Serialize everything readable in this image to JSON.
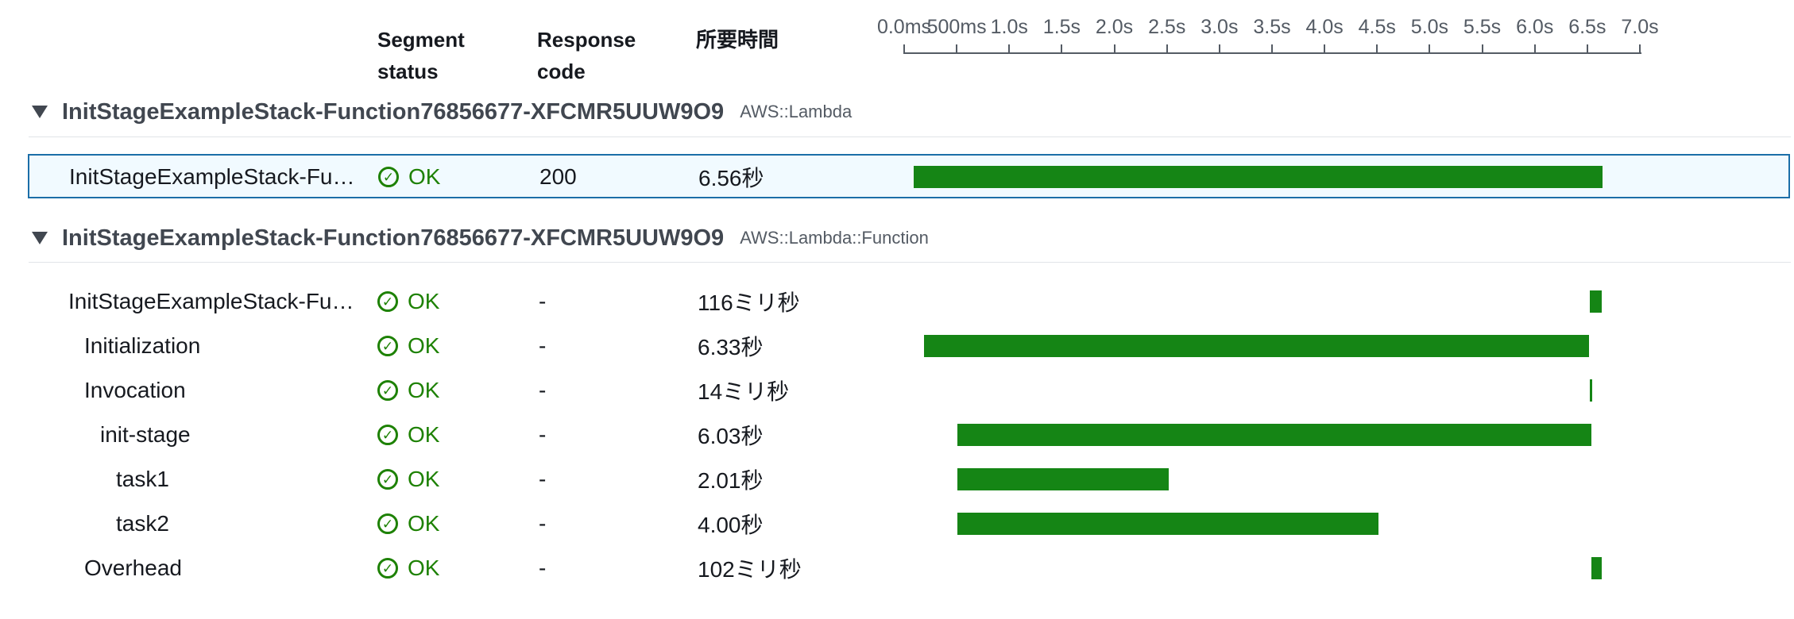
{
  "headers": {
    "segment_status": "Segment status",
    "segment_status_l1": "Segment",
    "segment_status_l2": "status",
    "response_code_l1": "Response",
    "response_code_l2": "code",
    "duration": "所要時間"
  },
  "timeline_axis": {
    "ticks": [
      "0.0ms",
      "500ms",
      "1.0s",
      "1.5s",
      "2.0s",
      "2.5s",
      "3.0s",
      "3.5s",
      "4.0s",
      "4.5s",
      "5.0s",
      "5.5s",
      "6.0s",
      "6.5s",
      "7.0s"
    ],
    "range_seconds": [
      0,
      7.0
    ]
  },
  "groups": [
    {
      "name": "InitStageExampleStack-Function76856677-XFCMR5UUW9O9",
      "type": "AWS::Lambda",
      "rows": [
        {
          "name": "InitStageExampleStack-Function76856677-XFCMR5UUW9O9",
          "display_name": "InitStageExampleStack-Func…",
          "status": "OK",
          "response_code": "200",
          "duration": "6.56秒",
          "start_s": 0.08,
          "end_s": 6.64,
          "selected": true,
          "indent": 0
        }
      ]
    },
    {
      "name": "InitStageExampleStack-Function76856677-XFCMR5UUW9O9",
      "type": "AWS::Lambda::Function",
      "rows": [
        {
          "name": "InitStageExampleStack-Function76856677-XFCMR5UUW9O9",
          "display_name": "InitStageExampleStack-Func…",
          "status": "OK",
          "response_code": "-",
          "duration": "116ミリ秒",
          "start_s": 6.52,
          "end_s": 6.64,
          "indent": 0
        },
        {
          "name": "Initialization",
          "display_name": "Initialization",
          "status": "OK",
          "response_code": "-",
          "duration": "6.33秒",
          "start_s": 0.19,
          "end_s": 6.52,
          "indent": 1
        },
        {
          "name": "Invocation",
          "display_name": "Invocation",
          "status": "OK",
          "response_code": "-",
          "duration": "14ミリ秒",
          "start_s": 6.52,
          "end_s": 6.54,
          "indent": 1
        },
        {
          "name": "init-stage",
          "display_name": "init-stage",
          "status": "OK",
          "response_code": "-",
          "duration": "6.03秒",
          "start_s": 0.51,
          "end_s": 6.54,
          "indent": 2
        },
        {
          "name": "task1",
          "display_name": "task1",
          "status": "OK",
          "response_code": "-",
          "duration": "2.01秒",
          "start_s": 0.51,
          "end_s": 2.52,
          "indent": 3
        },
        {
          "name": "task2",
          "display_name": "task2",
          "status": "OK",
          "response_code": "-",
          "duration": "4.00秒",
          "start_s": 0.51,
          "end_s": 4.51,
          "indent": 3
        },
        {
          "name": "Overhead",
          "display_name": "Overhead",
          "status": "OK",
          "response_code": "-",
          "duration": "102ミリ秒",
          "start_s": 6.54,
          "end_s": 6.64,
          "indent": 1
        }
      ]
    }
  ],
  "colors": {
    "bar": "#158515",
    "ok": "#1d8102",
    "selected_border": "#1b6ea8",
    "selected_bg": "#f1faff"
  }
}
